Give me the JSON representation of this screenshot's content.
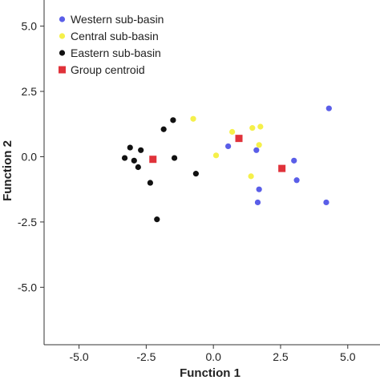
{
  "chart_data": {
    "type": "scatter",
    "title": "",
    "xlabel": "Function 1",
    "ylabel": "Function 2",
    "xlim": [
      -6.3,
      6.2
    ],
    "ylim": [
      -7.2,
      6.0
    ],
    "x_ticks": [
      -5.0,
      -2.5,
      0.0,
      2.5,
      5.0
    ],
    "x_tick_labels": [
      "-5.0",
      "-2.5",
      "0.0",
      "2.5",
      "5.0"
    ],
    "y_ticks": [
      5.0,
      2.5,
      0.0,
      -2.5,
      -5.0
    ],
    "y_tick_labels": [
      "5.0",
      "2.5",
      "0.0",
      "-2.5",
      "-5.0"
    ],
    "grid": false,
    "legend_position": "top-left",
    "series": [
      {
        "name": "Western sub-basin",
        "color": "#5a5ee8",
        "marker": "circle",
        "points": [
          [
            4.3,
            1.85
          ],
          [
            3.0,
            -0.15
          ],
          [
            3.1,
            -0.9
          ],
          [
            1.6,
            0.25
          ],
          [
            1.7,
            -1.25
          ],
          [
            1.65,
            -1.75
          ],
          [
            4.2,
            -1.75
          ],
          [
            0.55,
            0.4
          ]
        ]
      },
      {
        "name": "Central sub-basin",
        "color": "#f5f04a",
        "marker": "circle",
        "points": [
          [
            -0.75,
            1.45
          ],
          [
            0.7,
            0.95
          ],
          [
            1.45,
            1.1
          ],
          [
            1.75,
            1.15
          ],
          [
            1.7,
            0.45
          ],
          [
            0.1,
            0.05
          ],
          [
            1.4,
            -0.75
          ]
        ]
      },
      {
        "name": "Eastern sub-basin",
        "color": "#111111",
        "marker": "circle",
        "points": [
          [
            -3.3,
            -0.05
          ],
          [
            -3.1,
            0.35
          ],
          [
            -2.95,
            -0.15
          ],
          [
            -2.7,
            0.25
          ],
          [
            -2.8,
            -0.4
          ],
          [
            -2.35,
            -1.0
          ],
          [
            -1.85,
            1.05
          ],
          [
            -1.5,
            1.4
          ],
          [
            -1.45,
            -0.05
          ],
          [
            -0.65,
            -0.65
          ],
          [
            -2.1,
            -2.4
          ]
        ]
      },
      {
        "name": "Group centroid",
        "color": "#e0323a",
        "marker": "square",
        "points": [
          [
            -2.25,
            -0.1
          ],
          [
            0.95,
            0.7
          ],
          [
            2.55,
            -0.45
          ]
        ]
      }
    ]
  }
}
